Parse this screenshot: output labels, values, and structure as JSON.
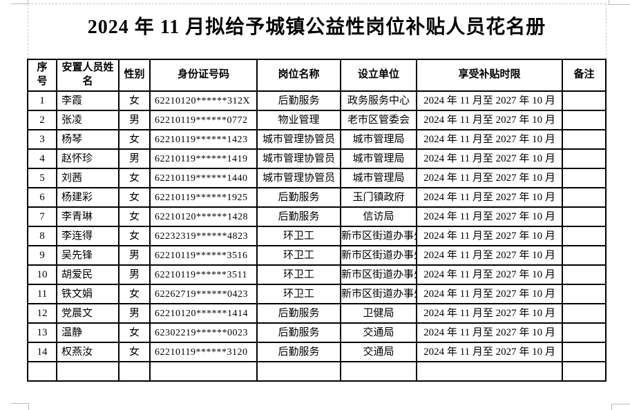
{
  "page": {
    "title": "2024 年 11 月拟给予城镇公益性岗位补贴人员花名册"
  },
  "colors": {
    "text": "#000000",
    "table_border": "#000000",
    "guide_gray": "#c3c3c3",
    "background": "#ffffff"
  },
  "table": {
    "col_keys": [
      "no",
      "name",
      "gender",
      "id",
      "position",
      "unit",
      "period",
      "remark"
    ],
    "headers": {
      "no": "序号",
      "name": "安置人员姓名",
      "gender": "性别",
      "id": "身份证号码",
      "position": "岗位名称",
      "unit": "设立单位",
      "period": "享受补贴时限",
      "remark": "备注"
    },
    "rows": [
      {
        "no": "1",
        "name": "李霞",
        "gender": "女",
        "id": "62210120******312X",
        "position": "后勤服务",
        "unit": "政务服务中心",
        "period": "2024 年 11 月至 2027 年 10 月",
        "remark": ""
      },
      {
        "no": "2",
        "name": "张凌",
        "gender": "男",
        "id": "62210119******0772",
        "position": "物业管理",
        "unit": "老市区管委会",
        "period": "2024 年 11 月至 2027 年 10 月",
        "remark": ""
      },
      {
        "no": "3",
        "name": "杨琴",
        "gender": "女",
        "id": "62210119******1423",
        "position": "城市管理协管员",
        "unit": "城市管理局",
        "period": "2024 年 11 月至 2027 年 10 月",
        "remark": ""
      },
      {
        "no": "4",
        "name": "赵怀珍",
        "gender": "男",
        "id": "62210119******1419",
        "position": "城市管理协管员",
        "unit": "城市管理局",
        "period": "2024 年 11 月至 2027 年 10 月",
        "remark": ""
      },
      {
        "no": "5",
        "name": "刘茜",
        "gender": "女",
        "id": "62210119******1440",
        "position": "城市管理协管员",
        "unit": "城市管理局",
        "period": "2024 年 11 月至 2027 年 10 月",
        "remark": ""
      },
      {
        "no": "6",
        "name": "杨建彩",
        "gender": "女",
        "id": "62210119******1925",
        "position": "后勤服务",
        "unit": "玉门镇政府",
        "period": "2024 年 11 月至 2027 年 10 月",
        "remark": ""
      },
      {
        "no": "7",
        "name": "李青琳",
        "gender": "女",
        "id": "62210120******1428",
        "position": "后勤服务",
        "unit": "信访局",
        "period": "2024 年 11 月至 2027 年 10 月",
        "remark": ""
      },
      {
        "no": "8",
        "name": "李连得",
        "gender": "女",
        "id": "62232319******4823",
        "position": "环卫工",
        "unit": "新市区街道办事处",
        "period": "2024 年 11 月至 2027 年 10 月",
        "remark": ""
      },
      {
        "no": "9",
        "name": "吴先锋",
        "gender": "男",
        "id": "62210119******3516",
        "position": "环卫工",
        "unit": "新市区街道办事处",
        "period": "2024 年 11 月至 2027 年 10 月",
        "remark": ""
      },
      {
        "no": "10",
        "name": "胡爱民",
        "gender": "男",
        "id": "62210119******3511",
        "position": "环卫工",
        "unit": "新市区街道办事处",
        "period": "2024 年 11 月至 2027 年 10 月",
        "remark": ""
      },
      {
        "no": "11",
        "name": "铁文娟",
        "gender": "女",
        "id": "62262719******0423",
        "position": "环卫工",
        "unit": "新市区街道办事处",
        "period": "2024 年 11 月至 2027 年 10 月",
        "remark": ""
      },
      {
        "no": "12",
        "name": "党晨文",
        "gender": "男",
        "id": "62210120******1414",
        "position": "后勤服务",
        "unit": "卫健局",
        "period": "2024 年 11 月至 2027 年 10 月",
        "remark": ""
      },
      {
        "no": "13",
        "name": "温静",
        "gender": "女",
        "id": "62302219******0023",
        "position": "后勤服务",
        "unit": "交通局",
        "period": "2024 年 11 月至 2027 年 10 月",
        "remark": ""
      },
      {
        "no": "14",
        "name": "权燕汝",
        "gender": "女",
        "id": "62210119******3120",
        "position": "后勤服务",
        "unit": "交通局",
        "period": "2024 年 11 月至 2027 年 10 月",
        "remark": ""
      },
      {
        "no": "",
        "name": "",
        "gender": "",
        "id": "",
        "position": "",
        "unit": "",
        "period": "",
        "remark": ""
      }
    ]
  }
}
